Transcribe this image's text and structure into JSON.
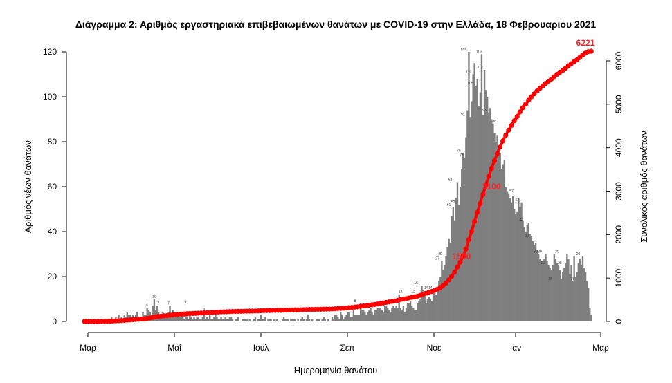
{
  "chart_data": {
    "type": "bar",
    "title": "Διάγραμμα 2: Αριθμός εργαστηριακά επιβεβαιωμένων θανάτων με COVID-19 στην Ελλάδα, 18 Φεβρουαρίου 2021",
    "xlabel": "Ημερομηνία θανάτου",
    "ylabel": "Αριθμός νέων θανάτων",
    "ylabel_right": "Συνολικός αριθμός θανάτων",
    "x_tick_labels": [
      "Μαρ",
      "Μαΐ",
      "Ιουλ",
      "Σεπ",
      "Νοε",
      "Ιαν",
      "Μαρ"
    ],
    "ylim": [
      0,
      120
    ],
    "y_ticks": [
      0,
      20,
      40,
      60,
      80,
      100,
      120
    ],
    "ylim_right": [
      0,
      6000
    ],
    "y_ticks_right": [
      0,
      1000,
      2000,
      3000,
      4000,
      5000,
      6000
    ],
    "series": [
      {
        "kind": "bar",
        "color": "#7f7f7f",
        "start_date": "2020-03-01",
        "values": [
          0,
          0,
          0,
          0,
          0,
          0,
          0,
          0,
          0,
          0,
          0,
          1,
          1,
          1,
          1,
          1,
          1,
          0,
          1,
          2,
          1,
          1,
          2,
          1,
          3,
          1,
          2,
          1,
          3,
          2,
          4,
          3,
          3,
          2,
          3,
          1,
          3,
          4,
          2,
          2,
          2,
          4,
          3,
          3,
          6,
          5,
          4,
          3,
          7,
          10,
          5,
          7,
          4,
          3,
          2,
          4,
          3,
          2,
          2,
          4,
          7,
          3,
          5,
          2,
          4,
          3,
          2,
          2,
          2,
          3,
          1,
          4,
          2,
          1,
          3,
          2,
          1,
          2,
          1,
          2,
          2,
          1,
          1,
          2,
          3,
          1,
          2,
          1,
          3,
          1,
          1,
          2,
          3,
          2,
          1,
          1,
          2,
          1,
          1,
          2,
          1,
          1,
          2,
          2,
          1,
          0,
          1,
          1,
          2,
          0,
          0,
          1,
          1,
          1,
          1,
          0,
          1,
          0,
          0,
          1,
          2,
          0,
          1,
          1,
          3,
          1,
          1,
          2,
          0,
          1,
          1,
          1,
          0,
          1,
          0,
          1,
          0,
          0,
          0,
          1,
          2,
          1,
          1,
          1,
          0,
          1,
          1,
          1,
          1,
          0,
          1,
          0,
          1,
          2,
          1,
          0,
          1,
          3,
          1,
          0,
          1,
          0,
          0,
          1,
          1,
          1,
          0,
          1,
          2,
          1,
          0,
          1,
          0,
          0,
          2,
          1,
          3,
          3,
          2,
          1,
          4,
          3,
          1,
          2,
          3,
          4,
          4,
          2,
          2,
          5,
          3,
          3,
          3,
          3,
          8,
          5,
          5,
          4,
          3,
          4,
          5,
          6,
          4,
          3,
          5,
          5,
          6,
          6,
          6,
          5,
          4,
          7,
          7,
          6,
          5,
          4,
          6,
          7,
          6,
          7,
          6,
          12,
          6,
          5,
          7,
          4,
          6,
          8,
          8,
          9,
          7,
          6,
          5,
          5,
          8,
          9,
          10,
          16,
          12,
          12,
          8,
          10,
          11,
          10,
          9,
          13,
          14,
          12,
          13,
          18,
          20,
          27,
          23,
          25,
          29,
          33,
          37,
          35,
          47,
          51,
          45,
          55,
          62,
          52,
          60,
          68,
          75,
          73,
          82,
          94,
          120,
          91,
          98,
          110,
          115,
          105,
          108,
          96,
          102,
          119,
          92,
          112,
          103,
          100,
          93,
          95,
          90,
          88,
          84,
          80,
          83,
          77,
          75,
          68,
          70,
          72,
          60,
          58,
          57,
          55,
          53,
          56,
          50,
          48,
          49,
          55,
          51,
          53,
          45,
          42,
          40,
          43,
          44,
          39,
          38,
          36,
          34,
          35,
          32,
          30,
          28,
          27,
          26,
          28,
          30,
          27,
          25,
          24,
          23,
          25,
          30,
          28,
          26,
          25,
          23,
          19,
          22,
          24,
          26,
          30,
          28,
          21,
          25,
          18,
          29,
          20,
          22,
          26,
          28,
          25,
          29,
          24,
          22,
          18,
          15,
          6,
          3
        ]
      },
      {
        "kind": "line",
        "color": "#ff0000",
        "axis": "right",
        "cumulative": true
      }
    ],
    "data_labels": [
      {
        "date": "2020-11-22",
        "value": 120,
        "text": "120"
      },
      {
        "date": "2020-12-03",
        "value": 119,
        "text": "119"
      },
      {
        "date": "2020-12-04",
        "value": 112,
        "text": "112"
      },
      {
        "date": "2020-11-26",
        "value": 110,
        "text": "110"
      },
      {
        "date": "2020-11-27",
        "value": 105,
        "text": "105"
      },
      {
        "date": "2020-12-07",
        "value": 93,
        "text": "93"
      },
      {
        "date": "2020-12-14",
        "value": 88,
        "text": "88"
      },
      {
        "date": "2020-11-22",
        "value": 91,
        "text": "91"
      },
      {
        "date": "2020-11-19",
        "value": 75,
        "text": "75"
      },
      {
        "date": "2020-11-21",
        "value": 73,
        "text": "73"
      },
      {
        "date": "2020-11-13",
        "value": 62,
        "text": "62"
      },
      {
        "date": "2020-11-12",
        "value": 51,
        "text": "51"
      },
      {
        "date": "2020-11-15",
        "value": 52,
        "text": "52"
      },
      {
        "date": "2020-12-30",
        "value": 53,
        "text": "53"
      },
      {
        "date": "2020-12-26",
        "value": 57,
        "text": "57"
      },
      {
        "date": "2021-01-02",
        "value": 44,
        "text": "44"
      },
      {
        "date": "2021-01-06",
        "value": 37,
        "text": "37"
      },
      {
        "date": "2020-11-04",
        "value": 27,
        "text": "27"
      },
      {
        "date": "2020-11-06",
        "value": 29,
        "text": "29"
      },
      {
        "date": "2021-02-11",
        "value": 29,
        "text": "29"
      },
      {
        "date": "2021-01-12",
        "value": 30,
        "text": "30"
      },
      {
        "date": "2021-01-15",
        "value": 30,
        "text": "30"
      },
      {
        "date": "2021-01-27",
        "value": 30,
        "text": "30"
      },
      {
        "date": "2021-01-17",
        "value": 25,
        "text": "25"
      },
      {
        "date": "2021-01-29",
        "value": 25,
        "text": "25"
      },
      {
        "date": "2021-01-22",
        "value": 18,
        "text": "18"
      },
      {
        "date": "2021-02-07",
        "value": 18,
        "text": "18"
      },
      {
        "date": "2020-10-20",
        "value": 16,
        "text": "16"
      },
      {
        "date": "2020-10-27",
        "value": 14,
        "text": "14"
      },
      {
        "date": "2020-10-30",
        "value": 14,
        "text": "14"
      },
      {
        "date": "2020-10-18",
        "value": 12,
        "text": "12"
      },
      {
        "date": "2020-10-09",
        "value": 12,
        "text": "12"
      },
      {
        "date": "2020-10-24",
        "value": 12,
        "text": "12"
      },
      {
        "date": "2020-10-22",
        "value": 10,
        "text": "10"
      },
      {
        "date": "2020-04-19",
        "value": 10,
        "text": "10"
      },
      {
        "date": "2020-04-22",
        "value": 7,
        "text": "7"
      },
      {
        "date": "2020-04-29",
        "value": 7,
        "text": "7"
      },
      {
        "date": "2020-05-11",
        "value": 7,
        "text": "7"
      },
      {
        "date": "2020-09-07",
        "value": 8,
        "text": "8"
      },
      {
        "date": "2020-04-14",
        "value": 6,
        "text": "6"
      },
      {
        "date": "2020-07-28",
        "value": 4,
        "text": "4"
      },
      {
        "date": "2020-05-24",
        "value": 4,
        "text": "4"
      }
    ],
    "cumulative_labels": [
      {
        "date": "2020-11-21",
        "value": 1500,
        "text": "1500"
      },
      {
        "date": "2020-12-12",
        "value": 3100,
        "text": "3100"
      },
      {
        "date": "2021-02-17",
        "value": 6221,
        "text": "6221"
      }
    ],
    "grid": false,
    "legend": "none"
  }
}
